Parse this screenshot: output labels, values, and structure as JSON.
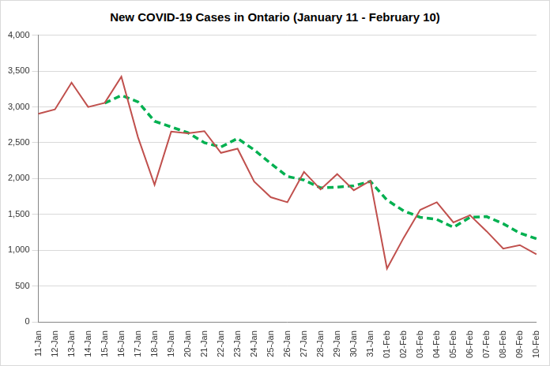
{
  "chart_data": {
    "type": "line",
    "title": "New COVID-19 Cases in Ontario (January 11 - February 10)",
    "categories": [
      "11-Jan",
      "12-Jan",
      "13-Jan",
      "14-Jan",
      "15-Jan",
      "16-Jan",
      "17-Jan",
      "18-Jan",
      "19-Jan",
      "20-Jan",
      "21-Jan",
      "22-Jan",
      "23-Jan",
      "24-Jan",
      "25-Jan",
      "26-Jan",
      "27-Jan",
      "28-Jan",
      "29-Jan",
      "30-Jan",
      "31-Jan",
      "01-Feb",
      "02-Feb",
      "03-Feb",
      "04-Feb",
      "05-Feb",
      "06-Feb",
      "07-Feb",
      "08-Feb",
      "09-Feb",
      "10-Feb"
    ],
    "series": [
      {
        "color": "#c0504d",
        "line_style": "solid",
        "values": [
          2903,
          2964,
          3338,
          2998,
          3056,
          3422,
          2578,
          1913,
          2655,
          2632,
          2662,
          2359,
          2417,
          1958,
          1740,
          1670,
          2093,
          1848,
          2063,
          1837,
          1969,
          745,
          1172,
          1563,
          1670,
          1388,
          1489,
          1265,
          1022,
          1072,
          945
        ]
      },
      {
        "color": "#00b050",
        "line_style": "dashed",
        "values": [
          null,
          null,
          null,
          null,
          3052,
          3160,
          3070,
          2800,
          2720,
          2640,
          2500,
          2440,
          2560,
          2400,
          2210,
          2030,
          1980,
          1870,
          1880,
          1900,
          1960,
          1700,
          1550,
          1460,
          1430,
          1320,
          1460,
          1470,
          1370,
          1240,
          1160
        ]
      }
    ],
    "ylim": [
      0,
      4000
    ],
    "yticks": [
      0,
      500,
      {
        "value": 1000,
        "label": "1,000"
      },
      {
        "value": 1500,
        "label": "1,500"
      },
      {
        "value": 2000,
        "label": "2,000"
      },
      {
        "value": 2500,
        "label": "2,500"
      },
      {
        "value": 3000,
        "label": "3,000"
      },
      {
        "value": 3500,
        "label": "3,500"
      },
      {
        "value": 4000,
        "label": "4,000"
      }
    ],
    "grid": true
  }
}
